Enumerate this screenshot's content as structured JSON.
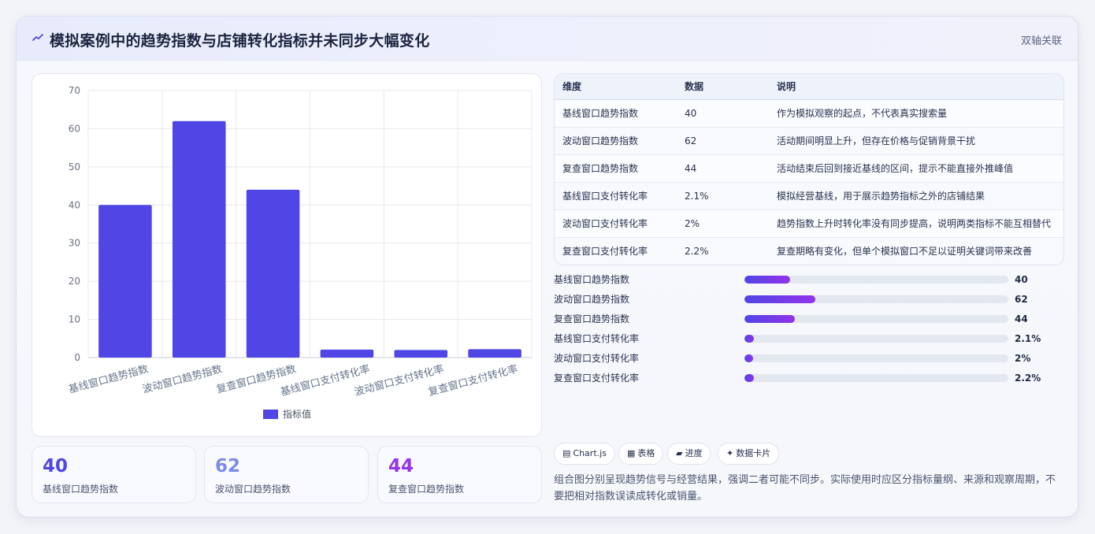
{
  "header": {
    "icon": "trend-icon",
    "title": "模拟案例中的趋势指数与店铺转化指标并未同步大幅变化",
    "badge": "双轴关联"
  },
  "colors": {
    "accent": "#4f46e5",
    "purple": "#9333ea",
    "stat_value_1": "#4f46e5",
    "stat_value_2": "#7c8be8",
    "stat_value_3": "#9333ea"
  },
  "chart_data": {
    "type": "bar",
    "categories": [
      "基线窗口趋势指数",
      "波动窗口趋势指数",
      "复查窗口趋势指数",
      "基线窗口支付转化率",
      "波动窗口支付转化率",
      "复查窗口支付转化率"
    ],
    "series": [
      {
        "name": "指标值",
        "values": [
          40,
          62,
          44,
          2.1,
          2,
          2.2
        ],
        "color": "#4f46e5"
      }
    ],
    "ylim": [
      0,
      70
    ],
    "yticks": [
      "0",
      "10",
      "20",
      "30",
      "40",
      "50",
      "60",
      "70"
    ],
    "grid": true,
    "legend": "bottom"
  },
  "stats": [
    {
      "value": "40",
      "label": "基线窗口趋势指数"
    },
    {
      "value": "62",
      "label": "波动窗口趋势指数"
    },
    {
      "value": "44",
      "label": "复查窗口趋势指数"
    }
  ],
  "table": {
    "headers": [
      "维度",
      "数据",
      "说明"
    ],
    "rows": [
      [
        "基线窗口趋势指数",
        "40",
        "作为模拟观察的起点，不代表真实搜索量"
      ],
      [
        "波动窗口趋势指数",
        "62",
        "活动期间明显上升，但存在价格与促销背景干扰"
      ],
      [
        "复查窗口趋势指数",
        "44",
        "活动结束后回到接近基线的区间，提示不能直接外推峰值"
      ],
      [
        "基线窗口支付转化率",
        "2.1%",
        "模拟经营基线，用于展示趋势指标之外的店铺结果"
      ],
      [
        "波动窗口支付转化率",
        "2%",
        "趋势指数上升时转化率没有同步提高，说明两类指标不能互相替代"
      ],
      [
        "复查窗口支付转化率",
        "2.2%",
        "复查期略有变化，但单个模拟窗口不足以证明关键词带来改善"
      ]
    ]
  },
  "progress": [
    {
      "label": "基线窗口趋势指数",
      "value": "40",
      "fraction": 0.173
    },
    {
      "label": "波动窗口趋势指数",
      "value": "62",
      "fraction": 0.268
    },
    {
      "label": "复查窗口趋势指数",
      "value": "44",
      "fraction": 0.19
    },
    {
      "label": "基线窗口支付转化率",
      "value": "2.1%",
      "fraction": 0.035
    },
    {
      "label": "波动窗口支付转化率",
      "value": "2%",
      "fraction": 0.034
    },
    {
      "label": "复查窗口支付转化率",
      "value": "2.2%",
      "fraction": 0.036
    }
  ],
  "tags": [
    {
      "icon": "▤",
      "label": "Chart.js"
    },
    {
      "icon": "▦",
      "label": "表格"
    },
    {
      "icon": "▰",
      "label": "进度"
    },
    {
      "icon": "✦",
      "label": "数据卡片"
    }
  ],
  "note": "组合图分别呈现趋势信号与经营结果，强调二者可能不同步。实际使用时应区分指标量纲、来源和观察周期，不要把相对指数误读成转化或销量。"
}
